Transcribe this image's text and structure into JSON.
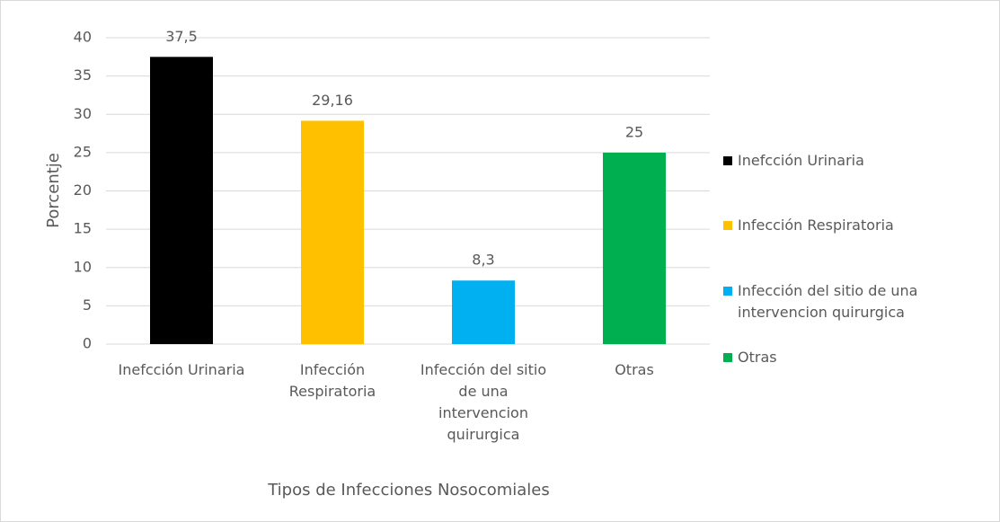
{
  "chart_data": {
    "type": "bar",
    "y_label": "Porcentje",
    "x_label": "Tipos de Infecciones Nosocomiales",
    "categories": [
      "Inefcción Urinaria",
      "Infección Respiratoria",
      "Infección del sitio de una intervencion quirurgica",
      "Otras"
    ],
    "values": [
      37.5,
      29.16,
      8.3,
      25
    ],
    "value_labels": [
      "37,5",
      "29,16",
      "8,3",
      "25"
    ],
    "colors": [
      "#000000",
      "#ffc000",
      "#00b0f0",
      "#00b050"
    ],
    "ylim": [
      0,
      40
    ],
    "yticks": [
      0,
      5,
      10,
      15,
      20,
      25,
      30,
      35,
      40
    ],
    "grid": true,
    "legend": "right"
  }
}
